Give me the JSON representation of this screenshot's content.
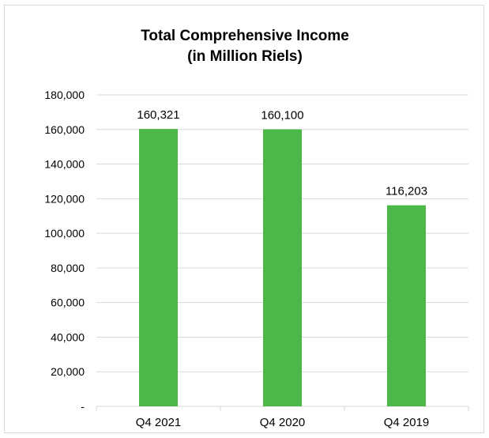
{
  "chart_data": {
    "type": "bar",
    "title": "Total Comprehensive Income",
    "subtitle": "(in Million Riels)",
    "xlabel": "",
    "ylabel": "",
    "categories": [
      "Q4 2021",
      "Q4 2020",
      "Q4 2019"
    ],
    "values": [
      160321,
      160100,
      116203
    ],
    "value_labels": [
      "160,321",
      "160,100",
      "116,203"
    ],
    "ylim": [
      0,
      180000
    ],
    "y_ticks": [
      0,
      20000,
      40000,
      60000,
      80000,
      100000,
      120000,
      140000,
      160000,
      180000
    ],
    "y_tick_labels": [
      "-",
      "20,000",
      "40,000",
      "60,000",
      "80,000",
      "100,000",
      "120,000",
      "140,000",
      "160,000",
      "180,000"
    ],
    "grid": true,
    "legend": "none",
    "colors": {
      "bar": "#4cb848",
      "grid": "#d9d9d9",
      "frame": "#d9d9d9"
    }
  }
}
